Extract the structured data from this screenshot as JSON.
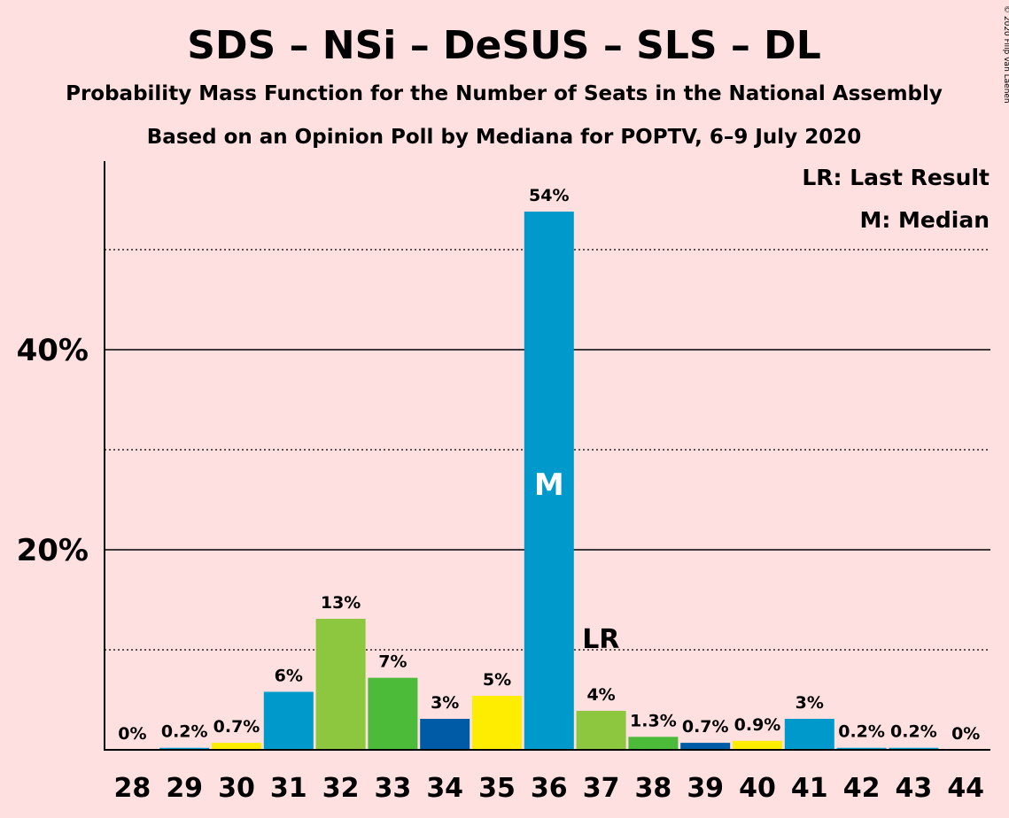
{
  "title": "SDS – NSi – DeSUS – SLS – DL",
  "subtitle1": "Probability Mass Function for the Number of Seats in the National Assembly",
  "subtitle2": "Based on an Opinion Poll by Mediana for POPTV, 6–9 July 2020",
  "legend": {
    "lr": "LR: Last Result",
    "m": "M: Median"
  },
  "copyright": "© 2020 Filip van Laenen",
  "chart_data": {
    "type": "bar",
    "categories": [
      "28",
      "29",
      "30",
      "31",
      "32",
      "33",
      "34",
      "35",
      "36",
      "37",
      "38",
      "39",
      "40",
      "41",
      "42",
      "43",
      "44"
    ],
    "values": [
      0,
      0.2,
      0.7,
      6,
      13,
      7,
      3,
      5,
      54,
      4,
      1.3,
      0.7,
      0.9,
      3,
      0.2,
      0.2,
      0
    ],
    "display_values": [
      0,
      0.2,
      0.7,
      5.8,
      13.1,
      7.2,
      3.1,
      5.4,
      53.8,
      3.9,
      1.3,
      0.7,
      0.9,
      3.1,
      0.2,
      0.2,
      0
    ],
    "data_labels": [
      "0%",
      "0.2%",
      "0.7%",
      "6%",
      "13%",
      "7%",
      "3%",
      "5%",
      "54%",
      "4%",
      "1.3%",
      "0.7%",
      "0.9%",
      "3%",
      "0.2%",
      "0.2%",
      "0%"
    ],
    "bar_colors": [
      "#0099CC",
      "#0099CC",
      "#FFED00",
      "#0099CC",
      "#8DC63F",
      "#4CBB3A",
      "#005BA6",
      "#FFED00",
      "#0099CC",
      "#8DC63F",
      "#4CBB3A",
      "#005BA6",
      "#FFED00",
      "#0099CC",
      "#0099CC",
      "#0099CC",
      "#0099CC"
    ],
    "yticks": [
      {
        "value": 20,
        "label": "20%"
      },
      {
        "value": 40,
        "label": "40%"
      }
    ],
    "minor_gridlines": [
      10,
      30,
      50
    ],
    "ylim": [
      0,
      58.5
    ],
    "median_category": "36",
    "median_label": "M",
    "last_result_category": "37",
    "last_result_label": "LR",
    "grid": true,
    "legend_position": "top-right"
  }
}
